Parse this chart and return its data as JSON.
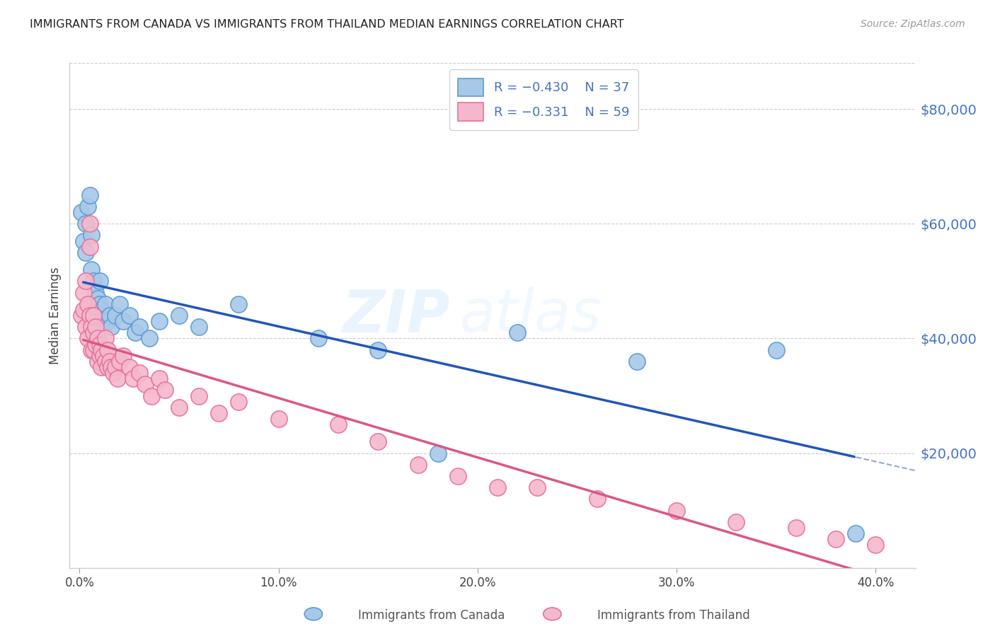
{
  "title": "IMMIGRANTS FROM CANADA VS IMMIGRANTS FROM THAILAND MEDIAN EARNINGS CORRELATION CHART",
  "source": "Source: ZipAtlas.com",
  "ylabel": "Median Earnings",
  "xlabel_ticks": [
    "0.0%",
    "10.0%",
    "20.0%",
    "30.0%",
    "40.0%"
  ],
  "xlabel_vals": [
    0.0,
    0.1,
    0.2,
    0.3,
    0.4
  ],
  "ytick_vals": [
    20000,
    40000,
    60000,
    80000
  ],
  "ytick_labels": [
    "$20,000",
    "$40,000",
    "$60,000",
    "$80,000"
  ],
  "ylim": [
    0,
    88000
  ],
  "xlim": [
    -0.005,
    0.42
  ],
  "canada_color": "#a8c8e8",
  "canada_edge": "#5b9bd5",
  "thailand_color": "#f4b8cc",
  "thailand_edge": "#e8709a",
  "line_canada_color": "#2255bb",
  "line_thailand_color": "#dd5588",
  "legend_r_canada": "R = −0.430",
  "legend_n_canada": "N = 37",
  "legend_r_thailand": "R = −0.331",
  "legend_n_thailand": "N = 59",
  "watermark_zip": "ZIP",
  "watermark_atlas": "atlas",
  "canada_x": [
    0.001,
    0.002,
    0.003,
    0.003,
    0.004,
    0.005,
    0.006,
    0.006,
    0.007,
    0.008,
    0.009,
    0.01,
    0.01,
    0.011,
    0.012,
    0.013,
    0.014,
    0.015,
    0.016,
    0.018,
    0.02,
    0.022,
    0.025,
    0.028,
    0.03,
    0.035,
    0.04,
    0.05,
    0.06,
    0.08,
    0.12,
    0.15,
    0.18,
    0.22,
    0.28,
    0.35,
    0.39
  ],
  "canada_y": [
    62000,
    57000,
    60000,
    55000,
    63000,
    65000,
    58000,
    52000,
    50000,
    48000,
    47000,
    46000,
    50000,
    45000,
    44000,
    46000,
    43000,
    44000,
    42000,
    44000,
    46000,
    43000,
    44000,
    41000,
    42000,
    40000,
    43000,
    44000,
    42000,
    46000,
    40000,
    38000,
    20000,
    41000,
    36000,
    38000,
    6000
  ],
  "thailand_x": [
    0.001,
    0.002,
    0.002,
    0.003,
    0.003,
    0.004,
    0.004,
    0.005,
    0.005,
    0.005,
    0.006,
    0.006,
    0.007,
    0.007,
    0.007,
    0.008,
    0.008,
    0.009,
    0.009,
    0.01,
    0.01,
    0.011,
    0.011,
    0.012,
    0.013,
    0.013,
    0.014,
    0.014,
    0.015,
    0.016,
    0.017,
    0.018,
    0.019,
    0.02,
    0.022,
    0.025,
    0.027,
    0.03,
    0.033,
    0.036,
    0.04,
    0.043,
    0.05,
    0.06,
    0.07,
    0.08,
    0.1,
    0.13,
    0.15,
    0.17,
    0.19,
    0.21,
    0.23,
    0.26,
    0.3,
    0.33,
    0.36,
    0.38,
    0.4
  ],
  "thailand_y": [
    44000,
    48000,
    45000,
    50000,
    42000,
    46000,
    40000,
    60000,
    56000,
    44000,
    42000,
    38000,
    44000,
    41000,
    38000,
    42000,
    39000,
    40000,
    36000,
    39000,
    37000,
    38000,
    35000,
    37000,
    36000,
    40000,
    35000,
    38000,
    36000,
    35000,
    34000,
    35000,
    33000,
    36000,
    37000,
    35000,
    33000,
    34000,
    32000,
    30000,
    33000,
    31000,
    28000,
    30000,
    27000,
    29000,
    26000,
    25000,
    22000,
    18000,
    16000,
    14000,
    14000,
    12000,
    10000,
    8000,
    7000,
    5000,
    4000
  ]
}
